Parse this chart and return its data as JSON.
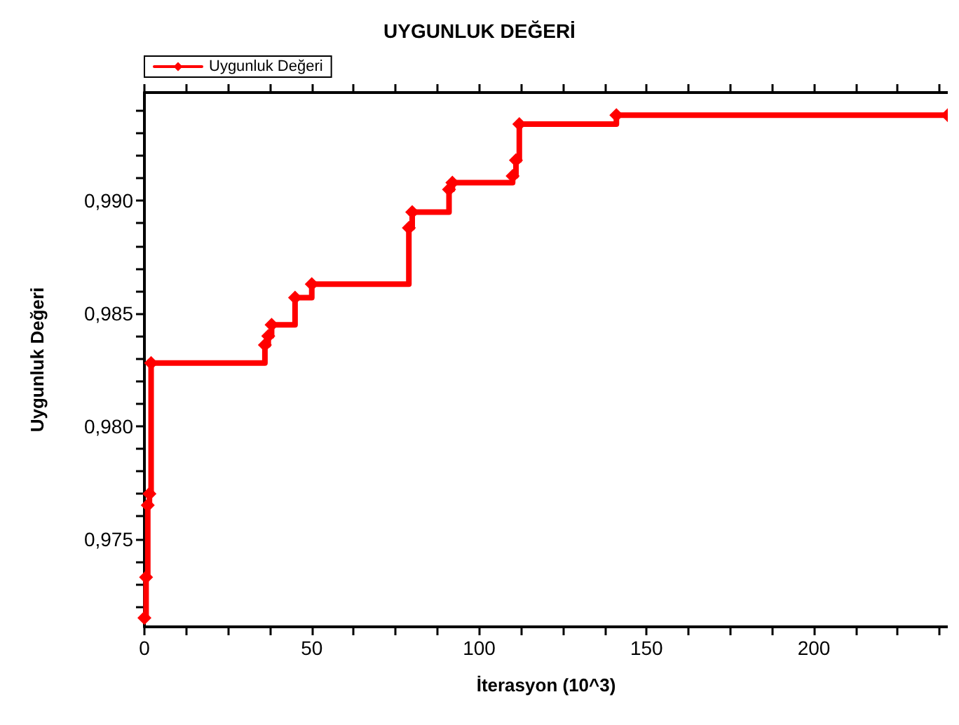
{
  "chart_data": {
    "type": "step",
    "title": "UYGUNLUK DEĞERİ",
    "xlabel": "İterasyon (10^3)",
    "ylabel": "Uygunluk Değeri",
    "x": [
      0,
      0.5,
      1,
      1.5,
      2,
      36,
      37,
      38,
      45,
      50,
      79,
      80,
      91,
      92,
      110,
      111,
      112,
      141,
      240
    ],
    "series": [
      {
        "name": "Uygunluk Değeri",
        "color": "#ff0000",
        "values": [
          0.9715,
          0.9733,
          0.9765,
          0.977,
          0.9828,
          0.9836,
          0.984,
          0.9845,
          0.9857,
          0.9863,
          0.9888,
          0.9895,
          0.9905,
          0.9908,
          0.9911,
          0.9918,
          0.9934,
          0.9938,
          0.9938
        ]
      }
    ],
    "xlim": [
      0,
      240
    ],
    "xticks": [
      0,
      {
        "value": 12.5,
        "label": null
      },
      {
        "value": 25,
        "label": null
      },
      {
        "value": 37.5,
        "label": null
      },
      50,
      {
        "value": 62.5,
        "label": null
      },
      {
        "value": 75,
        "label": null
      },
      {
        "value": 87.5,
        "label": null
      },
      100,
      {
        "value": 112.5,
        "label": null
      },
      {
        "value": 125,
        "label": null
      },
      {
        "value": 137.5,
        "label": null
      },
      150,
      {
        "value": 162.5,
        "label": null
      },
      {
        "value": 175,
        "label": null
      },
      {
        "value": 187.5,
        "label": null
      },
      200,
      {
        "value": 212.5,
        "label": null
      },
      {
        "value": 225,
        "label": null
      },
      {
        "value": 237.5,
        "label": null
      }
    ],
    "ylim": [
      0.9711,
      0.9948
    ],
    "yticks": [
      {
        "value": 0.972,
        "label": null
      },
      {
        "value": 0.973,
        "label": null
      },
      {
        "value": 0.974,
        "label": null
      },
      {
        "value": 0.975,
        "label": "0,975"
      },
      {
        "value": 0.976,
        "label": null
      },
      {
        "value": 0.977,
        "label": null
      },
      {
        "value": 0.978,
        "label": null
      },
      {
        "value": 0.979,
        "label": null
      },
      {
        "value": 0.98,
        "label": "0,980"
      },
      {
        "value": 0.981,
        "label": null
      },
      {
        "value": 0.982,
        "label": null
      },
      {
        "value": 0.983,
        "label": null
      },
      {
        "value": 0.984,
        "label": null
      },
      {
        "value": 0.985,
        "label": "0,985"
      },
      {
        "value": 0.986,
        "label": null
      },
      {
        "value": 0.987,
        "label": null
      },
      {
        "value": 0.988,
        "label": null
      },
      {
        "value": 0.989,
        "label": null
      },
      {
        "value": 0.99,
        "label": "0,990"
      },
      {
        "value": 0.991,
        "label": null
      },
      {
        "value": 0.992,
        "label": null
      },
      {
        "value": 0.993,
        "label": null
      },
      {
        "value": 0.994,
        "label": null
      }
    ],
    "grid": false,
    "legend": "top left",
    "marker": "diamond",
    "line_style": "solid"
  }
}
